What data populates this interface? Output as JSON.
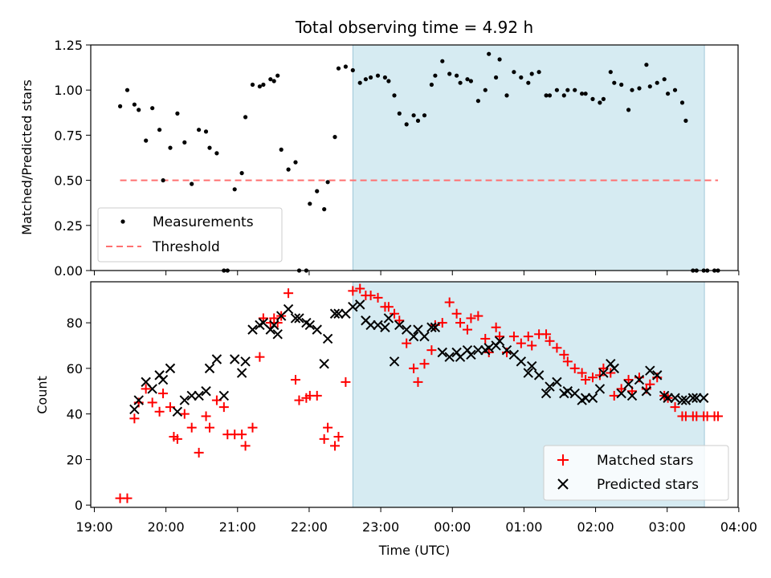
{
  "chart_data": [
    {
      "type": "scatter",
      "title": "Total observing time = 4.92 h",
      "xlabel": "",
      "ylabel": "Matched/Predicted stars",
      "xlim": [
        -0.05,
        8.99
      ],
      "ylim": [
        0,
        1.25
      ],
      "yticks": [
        "0.00",
        "0.25",
        "0.50",
        "0.75",
        "1.00",
        "1.25"
      ],
      "legend_position": "lower-left",
      "shaded_interval": [
        3.61,
        8.52
      ],
      "series": [
        {
          "name": "Measurements",
          "marker": "dot",
          "color": "#000000",
          "x": [
            0.36,
            0.46,
            0.56,
            0.62,
            0.72,
            0.81,
            0.91,
            0.96,
            1.06,
            1.16,
            1.26,
            1.36,
            1.46,
            1.56,
            1.61,
            1.71,
            1.81,
            1.86,
            1.96,
            2.06,
            2.11,
            2.21,
            2.31,
            2.36,
            2.46,
            2.51,
            2.56,
            2.61,
            2.71,
            2.81,
            2.86,
            2.96,
            3.01,
            3.11,
            3.21,
            3.26,
            3.36,
            3.41,
            3.51,
            3.61,
            3.71,
            3.79,
            3.86,
            3.96,
            4.06,
            4.11,
            4.19,
            4.26,
            4.36,
            4.46,
            4.52,
            4.61,
            4.71,
            4.76,
            4.86,
            4.96,
            5.06,
            5.11,
            5.21,
            5.26,
            5.36,
            5.46,
            5.51,
            5.61,
            5.66,
            5.76,
            5.86,
            5.96,
            6.06,
            6.11,
            6.21,
            6.31,
            6.36,
            6.46,
            6.56,
            6.61,
            6.71,
            6.81,
            6.86,
            6.96,
            7.06,
            7.11,
            7.21,
            7.26,
            7.36,
            7.46,
            7.51,
            7.61,
            7.71,
            7.76,
            7.86,
            7.96,
            8.01,
            8.11,
            8.21,
            8.26,
            8.36,
            8.41,
            8.51,
            8.56,
            8.66,
            8.71
          ],
          "y": [
            0.91,
            1.0,
            0.92,
            0.89,
            0.72,
            0.9,
            0.78,
            0.5,
            0.68,
            0.87,
            0.71,
            0.48,
            0.78,
            0.77,
            0.68,
            0.65,
            0.0,
            0.0,
            0.45,
            0.54,
            0.85,
            1.03,
            1.02,
            1.03,
            1.06,
            1.05,
            1.08,
            0.67,
            0.56,
            0.6,
            0.0,
            0.0,
            0.37,
            0.44,
            0.34,
            0.49,
            0.74,
            1.12,
            1.13,
            1.11,
            1.04,
            1.06,
            1.07,
            1.08,
            1.07,
            1.05,
            0.97,
            0.87,
            0.81,
            0.86,
            0.83,
            0.86,
            1.03,
            1.08,
            1.16,
            1.09,
            1.08,
            1.04,
            1.06,
            1.05,
            0.94,
            1.0,
            1.2,
            1.07,
            1.17,
            0.97,
            1.1,
            1.07,
            1.04,
            1.09,
            1.1,
            0.97,
            0.97,
            1.0,
            0.97,
            1.0,
            1.0,
            0.98,
            0.98,
            0.95,
            0.93,
            0.95,
            1.1,
            1.04,
            1.03,
            0.89,
            1.0,
            1.01,
            1.14,
            1.02,
            1.04,
            1.06,
            0.98,
            1.0,
            0.93,
            0.83,
            0.0,
            0.0,
            0.0,
            0.0,
            0.0,
            0.0
          ]
        },
        {
          "name": "Threshold",
          "line": "dashed",
          "color": "#ff7070",
          "x": [
            0.36,
            8.71
          ],
          "y": [
            0.5,
            0.5
          ]
        }
      ]
    },
    {
      "type": "scatter",
      "title": "",
      "xlabel": "Time (UTC)",
      "ylabel": "Count",
      "xlim": [
        -0.05,
        8.99
      ],
      "ylim": [
        -1,
        98
      ],
      "xticks": [
        "19:00",
        "20:00",
        "21:00",
        "22:00",
        "23:00",
        "00:00",
        "01:00",
        "02:00",
        "03:00",
        "04:00"
      ],
      "yticks": [
        "0",
        "20",
        "40",
        "60",
        "80"
      ],
      "legend_position": "lower-right",
      "shaded_interval": [
        3.61,
        8.52
      ],
      "series": [
        {
          "name": "Matched stars",
          "marker": "plus",
          "color": "#ff0000",
          "x": [
            0.36,
            0.46,
            0.56,
            0.62,
            0.72,
            0.81,
            0.91,
            0.96,
            1.06,
            1.11,
            1.16,
            1.26,
            1.36,
            1.46,
            1.56,
            1.61,
            1.71,
            1.81,
            1.86,
            1.96,
            2.06,
            2.11,
            2.21,
            2.31,
            2.36,
            2.46,
            2.51,
            2.56,
            2.61,
            2.71,
            2.81,
            2.86,
            2.96,
            3.01,
            3.11,
            3.21,
            3.26,
            3.36,
            3.41,
            3.51,
            3.61,
            3.71,
            3.79,
            3.86,
            3.96,
            4.06,
            4.11,
            4.19,
            4.26,
            4.36,
            4.46,
            4.52,
            4.61,
            4.71,
            4.76,
            4.86,
            4.96,
            5.06,
            5.11,
            5.21,
            5.26,
            5.36,
            5.46,
            5.51,
            5.61,
            5.66,
            5.76,
            5.86,
            5.96,
            6.06,
            6.11,
            6.21,
            6.31,
            6.36,
            6.46,
            6.56,
            6.61,
            6.71,
            6.81,
            6.86,
            6.96,
            7.06,
            7.11,
            7.21,
            7.26,
            7.36,
            7.46,
            7.51,
            7.61,
            7.71,
            7.76,
            7.86,
            7.96,
            8.01,
            8.11,
            8.21,
            8.26,
            8.36,
            8.41,
            8.51,
            8.56,
            8.66,
            8.71
          ],
          "y": [
            3,
            3,
            38,
            45,
            51,
            45,
            41,
            49,
            43,
            30,
            29,
            40,
            34,
            23,
            39,
            34,
            46,
            43,
            31,
            31,
            31,
            26,
            34,
            65,
            82,
            80,
            82,
            80,
            83,
            93,
            55,
            46,
            47,
            48,
            48,
            29,
            34,
            26,
            30,
            54,
            94,
            95,
            92,
            92,
            91,
            87,
            87,
            84,
            81,
            71,
            60,
            54,
            62,
            68,
            79,
            80,
            89,
            84,
            80,
            77,
            82,
            83,
            73,
            67,
            78,
            74,
            67,
            74,
            71,
            74,
            70,
            75,
            75,
            72,
            69,
            66,
            63,
            60,
            58,
            55,
            56,
            57,
            60,
            58,
            48,
            51,
            55,
            50,
            56,
            51,
            53,
            56,
            48,
            47,
            43,
            39,
            39,
            39,
            39,
            39,
            39,
            39,
            39
          ]
        },
        {
          "name": "Predicted stars",
          "marker": "x",
          "color": "#000000",
          "x": [
            0.56,
            0.62,
            0.72,
            0.81,
            0.91,
            0.96,
            1.06,
            1.16,
            1.26,
            1.36,
            1.46,
            1.56,
            1.61,
            1.71,
            1.81,
            1.96,
            2.06,
            2.11,
            2.21,
            2.31,
            2.36,
            2.46,
            2.51,
            2.56,
            2.61,
            2.71,
            2.81,
            2.86,
            2.96,
            3.01,
            3.11,
            3.21,
            3.26,
            3.36,
            3.41,
            3.51,
            3.61,
            3.71,
            3.79,
            3.86,
            3.96,
            4.06,
            4.11,
            4.19,
            4.26,
            4.36,
            4.46,
            4.52,
            4.61,
            4.71,
            4.76,
            4.86,
            4.96,
            5.06,
            5.11,
            5.21,
            5.26,
            5.36,
            5.46,
            5.51,
            5.61,
            5.66,
            5.76,
            5.86,
            5.96,
            6.06,
            6.11,
            6.21,
            6.31,
            6.36,
            6.46,
            6.56,
            6.61,
            6.71,
            6.81,
            6.86,
            6.96,
            7.06,
            7.11,
            7.21,
            7.26,
            7.36,
            7.46,
            7.51,
            7.61,
            7.71,
            7.76,
            7.86,
            7.96,
            8.01,
            8.11,
            8.21,
            8.26,
            8.36,
            8.41,
            8.51
          ],
          "y": [
            42,
            46,
            54,
            51,
            57,
            55,
            60,
            41,
            46,
            48,
            48,
            50,
            60,
            64,
            48,
            64,
            58,
            63,
            77,
            79,
            80,
            77,
            79,
            75,
            83,
            86,
            82,
            82,
            80,
            79,
            77,
            62,
            73,
            84,
            84,
            84,
            87,
            88,
            81,
            79,
            79,
            78,
            82,
            63,
            79,
            77,
            74,
            77,
            74,
            78,
            78,
            67,
            65,
            67,
            65,
            68,
            66,
            68,
            68,
            69,
            70,
            72,
            68,
            66,
            63,
            58,
            61,
            57,
            49,
            52,
            54,
            49,
            50,
            49,
            46,
            47,
            47,
            51,
            58,
            62,
            60,
            49,
            53,
            48,
            55,
            50,
            59,
            57,
            48,
            47,
            47,
            46,
            46,
            47,
            47,
            47
          ]
        }
      ]
    }
  ]
}
